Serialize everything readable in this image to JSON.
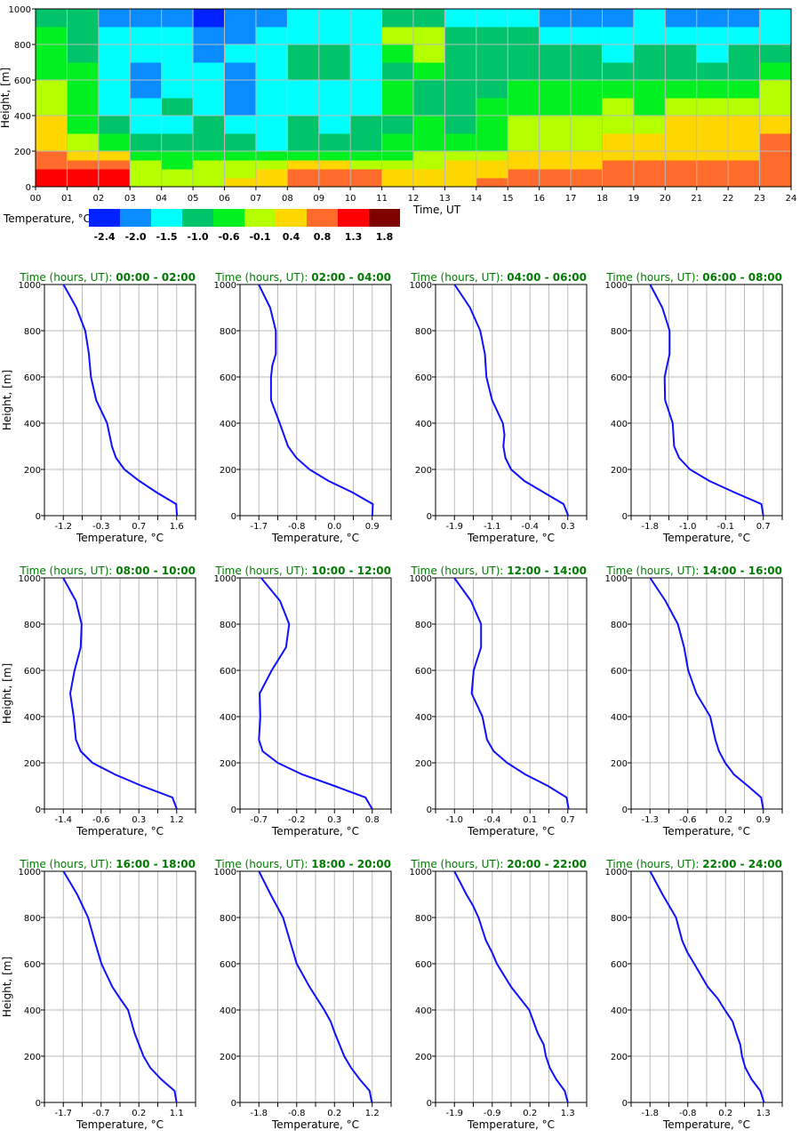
{
  "chart_data": [
    {
      "type": "heatmap",
      "xlabel": "Time, UT",
      "ylabel": "Height, [m]",
      "xlim": [
        0,
        24
      ],
      "ylim": [
        0,
        1000
      ],
      "x_tick_labels": [
        "00",
        "01",
        "02",
        "03",
        "04",
        "05",
        "06",
        "07",
        "08",
        "09",
        "10",
        "11",
        "12",
        "13",
        "14",
        "15",
        "16",
        "17",
        "18",
        "19",
        "20",
        "21",
        "22",
        "23",
        "24"
      ],
      "y_ticks": [
        0,
        200,
        400,
        600,
        800,
        1000
      ],
      "grid": true,
      "colorbar": {
        "label": "Temperature, °C",
        "levels": [
          "-2.4",
          "-2.0",
          "-1.5",
          "-1.0",
          "-0.6",
          "-0.1",
          "0.4",
          "0.8",
          "1.3",
          "1.8"
        ],
        "colors": [
          "#0022ff",
          "#0a8cff",
          "#00ffff",
          "#00c46a",
          "#00f020",
          "#b4ff00",
          "#ffd700",
          "#ff6b2a",
          "#ff0000",
          "#800000"
        ]
      },
      "time_hours": [
        0,
        1,
        2,
        3,
        4,
        5,
        6,
        7,
        8,
        9,
        10,
        11,
        12,
        13,
        14,
        15,
        16,
        17,
        18,
        19,
        20,
        21,
        22,
        23
      ],
      "height_bins": [
        0,
        50,
        100,
        150,
        200,
        300,
        400,
        500,
        600,
        700,
        800,
        900,
        1000
      ],
      "values": [
        [
          1.3,
          1.3,
          0.8,
          0.8,
          0.4,
          0.4,
          -0.1,
          -0.1,
          -0.6,
          -0.6,
          -0.6,
          -1.0
        ],
        [
          1.3,
          1.3,
          0.8,
          0.4,
          -0.1,
          -0.6,
          -0.6,
          -0.6,
          -0.6,
          -1.0,
          -1.0,
          -1.0
        ],
        [
          1.3,
          1.3,
          0.8,
          0.4,
          -0.6,
          -1.0,
          -1.5,
          -1.5,
          -1.5,
          -1.5,
          -1.5,
          -2.0
        ],
        [
          -0.1,
          -0.1,
          -0.1,
          -0.6,
          -1.0,
          -1.5,
          -1.5,
          -2.0,
          -2.0,
          -1.5,
          -1.5,
          -2.0
        ],
        [
          -0.1,
          -0.1,
          -0.6,
          -0.6,
          -1.0,
          -1.5,
          -1.0,
          -1.5,
          -1.5,
          -1.5,
          -1.5,
          -2.0
        ],
        [
          -0.1,
          -0.1,
          -0.1,
          -0.6,
          -1.0,
          -1.0,
          -1.5,
          -1.5,
          -1.5,
          -2.0,
          -2.0,
          -2.4
        ],
        [
          0.4,
          -0.1,
          -0.1,
          -0.6,
          -1.0,
          -1.5,
          -2.0,
          -2.0,
          -2.0,
          -1.5,
          -2.0,
          -2.0
        ],
        [
          0.4,
          0.4,
          -0.1,
          -0.6,
          -1.5,
          -1.5,
          -1.5,
          -1.5,
          -1.5,
          -1.5,
          -1.5,
          -2.0
        ],
        [
          0.8,
          0.8,
          0.4,
          -0.6,
          -1.0,
          -1.0,
          -1.5,
          -1.5,
          -1.0,
          -1.0,
          -1.5,
          -1.5
        ],
        [
          0.8,
          0.8,
          0.4,
          -0.6,
          -1.0,
          -1.5,
          -1.5,
          -1.5,
          -1.0,
          -1.0,
          -1.5,
          -1.5
        ],
        [
          0.8,
          0.8,
          -0.1,
          -0.6,
          -1.0,
          -1.0,
          -1.5,
          -1.5,
          -1.5,
          -1.5,
          -1.5,
          -1.5
        ],
        [
          0.4,
          0.4,
          -0.1,
          -0.6,
          -0.6,
          -1.0,
          -0.6,
          -0.6,
          -1.0,
          -0.6,
          -0.1,
          -1.0
        ],
        [
          0.4,
          0.4,
          -0.1,
          -0.1,
          -0.6,
          -0.6,
          -1.0,
          -1.0,
          -0.6,
          -0.1,
          -0.1,
          -1.0
        ],
        [
          0.4,
          0.4,
          0.4,
          -0.1,
          -0.6,
          -1.0,
          -1.0,
          -1.0,
          -1.0,
          -1.0,
          -1.0,
          -1.5
        ],
        [
          0.8,
          0.4,
          0.4,
          -0.1,
          -0.6,
          -0.6,
          -0.6,
          -1.0,
          -1.0,
          -1.0,
          -1.0,
          -1.5
        ],
        [
          0.8,
          0.8,
          0.4,
          0.4,
          -0.1,
          -0.1,
          -0.6,
          -0.6,
          -1.0,
          -1.0,
          -1.0,
          -1.5
        ],
        [
          0.8,
          0.8,
          0.4,
          0.4,
          -0.1,
          -0.1,
          -0.6,
          -0.6,
          -1.0,
          -1.0,
          -1.5,
          -2.0
        ],
        [
          0.8,
          0.8,
          0.4,
          0.4,
          -0.1,
          -0.1,
          -0.6,
          -0.6,
          -1.0,
          -1.0,
          -1.5,
          -2.0
        ],
        [
          0.8,
          0.8,
          0.8,
          0.4,
          0.4,
          -0.1,
          -0.1,
          -0.6,
          -1.0,
          -1.5,
          -1.5,
          -2.0
        ],
        [
          0.8,
          0.8,
          0.8,
          0.4,
          0.4,
          -0.1,
          -0.6,
          -0.6,
          -1.0,
          -1.0,
          -1.5,
          -1.5
        ],
        [
          0.8,
          0.8,
          0.8,
          0.4,
          0.4,
          0.4,
          -0.1,
          -0.6,
          -1.0,
          -1.0,
          -1.5,
          -2.0
        ],
        [
          0.8,
          0.8,
          0.8,
          0.4,
          0.4,
          0.4,
          -0.1,
          -0.6,
          -1.0,
          -1.5,
          -1.5,
          -2.0
        ],
        [
          0.8,
          0.8,
          0.8,
          0.4,
          0.4,
          0.4,
          -0.1,
          -0.6,
          -1.0,
          -1.0,
          -1.5,
          -2.0
        ],
        [
          0.8,
          0.8,
          0.8,
          0.8,
          0.8,
          0.4,
          -0.1,
          -0.1,
          -0.6,
          -1.0,
          -1.5,
          -1.5
        ]
      ]
    },
    {
      "type": "line",
      "title_prefix": "Time (hours, UT): ",
      "xlabel": "Temperature, °C",
      "ylabel": "Height, [m]",
      "ylim": [
        0,
        1000
      ],
      "y_ticks": [
        0,
        200,
        400,
        600,
        800,
        1000
      ],
      "grid": true,
      "line_color": "#1010ff",
      "title_color": "#007a00",
      "panels": [
        {
          "period": "00:00 - 02:00",
          "x_tick_labels": [
            "-1.2",
            "-0.3",
            "0.7",
            "1.6"
          ],
          "xlim": [
            -1.67,
            2.07
          ],
          "height": [
            1000,
            900,
            800,
            700,
            600,
            500,
            400,
            300,
            250,
            200,
            150,
            100,
            50,
            0
          ],
          "temperature": [
            -1.2,
            -0.88,
            -0.66,
            -0.57,
            -0.52,
            -0.39,
            -0.12,
            0.0,
            0.1,
            0.31,
            0.68,
            1.11,
            1.59,
            1.61
          ]
        },
        {
          "period": "02:00 - 04:00",
          "x_tick_labels": [
            "-1.7",
            "-0.8",
            "0.0",
            "0.9"
          ],
          "xlim": [
            -2.13,
            1.33
          ],
          "height": [
            1000,
            900,
            800,
            700,
            650,
            600,
            500,
            400,
            300,
            250,
            200,
            150,
            100,
            50,
            0
          ],
          "temperature": [
            -1.7,
            -1.44,
            -1.31,
            -1.31,
            -1.39,
            -1.42,
            -1.42,
            -1.22,
            -1.03,
            -0.84,
            -0.54,
            -0.1,
            0.45,
            0.91,
            0.9
          ]
        },
        {
          "period": "04:00 - 06:00",
          "x_tick_labels": [
            "-1.9",
            "-1.1",
            "-0.4",
            "0.3"
          ],
          "xlim": [
            -2.27,
            0.67
          ],
          "height": [
            1000,
            900,
            800,
            700,
            600,
            500,
            400,
            350,
            300,
            250,
            200,
            150,
            100,
            50,
            0
          ],
          "temperature": [
            -1.9,
            -1.6,
            -1.4,
            -1.31,
            -1.28,
            -1.17,
            -0.96,
            -0.93,
            -0.95,
            -0.91,
            -0.8,
            -0.54,
            -0.16,
            0.22,
            0.31
          ]
        },
        {
          "period": "06:00 - 08:00",
          "x_tick_labels": [
            "-1.8",
            "-1.0",
            "-0.1",
            "0.7"
          ],
          "xlim": [
            -2.22,
            1.12
          ],
          "height": [
            1000,
            900,
            800,
            700,
            600,
            500,
            400,
            300,
            250,
            200,
            150,
            100,
            50,
            0
          ],
          "temperature": [
            -1.8,
            -1.53,
            -1.37,
            -1.37,
            -1.48,
            -1.47,
            -1.3,
            -1.27,
            -1.16,
            -0.92,
            -0.49,
            0.07,
            0.66,
            0.7
          ]
        },
        {
          "period": "08:00 - 10:00",
          "x_tick_labels": [
            "-1.4",
            "-0.6",
            "0.3",
            "1.2"
          ],
          "xlim": [
            -1.83,
            1.63
          ],
          "height": [
            1000,
            900,
            800,
            700,
            600,
            500,
            400,
            300,
            250,
            200,
            150,
            100,
            50,
            0
          ],
          "temperature": [
            -1.4,
            -1.11,
            -0.98,
            -1.0,
            -1.14,
            -1.24,
            -1.16,
            -1.11,
            -1.0,
            -0.73,
            -0.22,
            0.4,
            1.1,
            1.2
          ]
        },
        {
          "period": "10:00 - 12:00",
          "x_tick_labels": [
            "-0.7",
            "-0.2",
            "0.3",
            "0.8"
          ],
          "xlim": [
            -0.95,
            1.05
          ],
          "height": [
            1000,
            900,
            800,
            700,
            600,
            500,
            400,
            300,
            250,
            200,
            150,
            100,
            50,
            0
          ],
          "temperature": [
            -0.67,
            -0.42,
            -0.3,
            -0.34,
            -0.53,
            -0.69,
            -0.68,
            -0.7,
            -0.65,
            -0.45,
            -0.13,
            0.3,
            0.71,
            0.8
          ]
        },
        {
          "period": "12:00 - 14:00",
          "x_tick_labels": [
            "-1.0",
            "-0.4",
            "0.1",
            "0.7"
          ],
          "xlim": [
            -1.28,
            0.98
          ],
          "height": [
            1000,
            900,
            800,
            700,
            600,
            500,
            400,
            300,
            250,
            200,
            150,
            100,
            50,
            0
          ],
          "temperature": [
            -1.0,
            -0.75,
            -0.6,
            -0.6,
            -0.71,
            -0.74,
            -0.58,
            -0.51,
            -0.41,
            -0.21,
            0.06,
            0.4,
            0.68,
            0.71
          ]
        },
        {
          "period": "14:00 - 16:00",
          "x_tick_labels": [
            "-1.3",
            "-0.6",
            "0.2",
            "0.9"
          ],
          "xlim": [
            -1.67,
            1.27
          ],
          "height": [
            1000,
            900,
            800,
            700,
            600,
            500,
            400,
            300,
            250,
            200,
            150,
            100,
            50,
            0
          ],
          "temperature": [
            -1.3,
            -1.0,
            -0.76,
            -0.64,
            -0.56,
            -0.4,
            -0.13,
            -0.03,
            0.04,
            0.16,
            0.33,
            0.6,
            0.86,
            0.9
          ]
        },
        {
          "period": "16:00 - 18:00",
          "x_tick_labels": [
            "-1.7",
            "-0.7",
            "0.2",
            "1.1"
          ],
          "xlim": [
            -2.17,
            1.57
          ],
          "height": [
            1000,
            900,
            800,
            700,
            600,
            500,
            450,
            400,
            300,
            200,
            150,
            100,
            50,
            0
          ],
          "temperature": [
            -1.7,
            -1.36,
            -1.09,
            -0.93,
            -0.76,
            -0.49,
            -0.3,
            -0.1,
            0.06,
            0.28,
            0.45,
            0.72,
            1.05,
            1.1
          ]
        },
        {
          "period": "18:00 - 20:00",
          "x_tick_labels": [
            "-1.8",
            "-0.8",
            "0.2",
            "1.2"
          ],
          "xlim": [
            -2.3,
            1.7
          ],
          "height": [
            1000,
            900,
            800,
            700,
            600,
            500,
            400,
            350,
            300,
            200,
            150,
            100,
            50,
            0
          ],
          "temperature": [
            -1.8,
            -1.49,
            -1.16,
            -0.98,
            -0.8,
            -0.46,
            -0.07,
            0.1,
            0.21,
            0.46,
            0.64,
            0.87,
            1.13,
            1.19
          ]
        },
        {
          "period": "20:00 - 22:00",
          "x_tick_labels": [
            "-1.9",
            "-0.9",
            "0.2",
            "1.3"
          ],
          "xlim": [
            -2.43,
            1.83
          ],
          "height": [
            1000,
            900,
            850,
            800,
            700,
            650,
            600,
            500,
            400,
            300,
            250,
            200,
            150,
            100,
            50,
            0
          ],
          "temperature": [
            -1.9,
            -1.56,
            -1.37,
            -1.22,
            -1.01,
            -0.84,
            -0.7,
            -0.3,
            0.21,
            0.45,
            0.62,
            0.68,
            0.79,
            0.97,
            1.21,
            1.3
          ]
        },
        {
          "period": "22:00 - 24:00",
          "x_tick_labels": [
            "-1.8",
            "-0.8",
            "0.2",
            "1.3"
          ],
          "xlim": [
            -2.32,
            1.82
          ],
          "height": [
            1000,
            900,
            800,
            700,
            650,
            600,
            500,
            450,
            400,
            350,
            300,
            250,
            200,
            150,
            100,
            50,
            0
          ],
          "temperature": [
            -1.8,
            -1.46,
            -1.09,
            -0.92,
            -0.78,
            -0.59,
            -0.22,
            0.05,
            0.25,
            0.46,
            0.56,
            0.67,
            0.72,
            0.81,
            0.98,
            1.22,
            1.32
          ]
        }
      ]
    }
  ]
}
